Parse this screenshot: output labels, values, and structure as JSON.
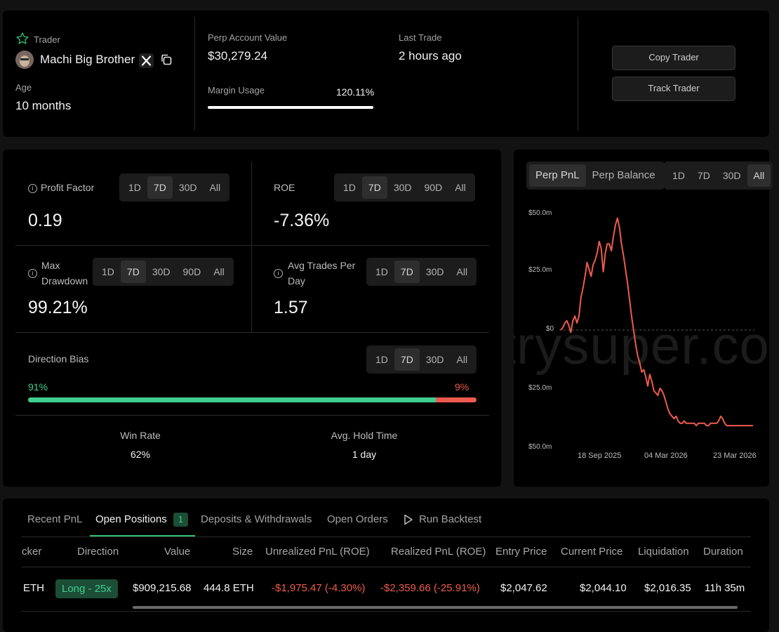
{
  "trader": {
    "label": "Trader",
    "name": "Machi Big Brother",
    "age_label": "Age",
    "age_value": "10 months"
  },
  "account": {
    "perp_label": "Perp Account Value",
    "perp_value": "$30,279.24",
    "last_trade_label": "Last Trade",
    "last_trade_value": "2 hours ago",
    "margin_label": "Margin Usage",
    "margin_value": "120.11%",
    "margin_fill": 1.0
  },
  "actions": {
    "copy": "Copy Trader",
    "track": "Track Trader"
  },
  "stats": {
    "profit_factor": {
      "label": "Profit Factor",
      "value": "0.19",
      "ranges": [
        "1D",
        "7D",
        "30D",
        "All"
      ],
      "active": "7D"
    },
    "roe": {
      "label": "ROE",
      "value": "-7.36%",
      "ranges": [
        "1D",
        "7D",
        "30D",
        "90D",
        "All"
      ],
      "active": "7D"
    },
    "max_drawdown": {
      "label_line1": "Max",
      "label_line2": "Drawdown",
      "value": "99.21%",
      "ranges": [
        "1D",
        "7D",
        "30D",
        "90D",
        "All"
      ],
      "active": "7D"
    },
    "avg_trades": {
      "label_line1": "Avg Trades Per",
      "label_line2": "Day",
      "value": "1.57",
      "ranges": [
        "1D",
        "7D",
        "30D",
        "All"
      ],
      "active": "7D"
    },
    "direction_bias": {
      "label": "Direction Bias",
      "long_pct": "91%",
      "short_pct": "9%",
      "long_fraction": 0.91,
      "ranges": [
        "1D",
        "7D",
        "30D",
        "All"
      ],
      "active": "7D"
    },
    "win_rate": {
      "label": "Win Rate",
      "value": "62%"
    },
    "avg_hold": {
      "label": "Avg. Hold Time",
      "value": "1 day"
    }
  },
  "chart_panel": {
    "mode_tabs": [
      "Perp PnL",
      "Perp Balance"
    ],
    "active_mode": "Perp PnL",
    "ranges": [
      "1D",
      "7D",
      "30D",
      "All"
    ],
    "active_range": "All",
    "watermark": "trysuper.co"
  },
  "chart_data": {
    "type": "line",
    "title": "",
    "ylabel": "",
    "xlabel": "",
    "y_tick_labels": [
      "$50.0m",
      "$25.0m",
      "$0",
      "$25.0m",
      "$50.0m"
    ],
    "x_tick_labels": [
      "18 Sep 2025",
      "04 Mar 2026",
      "23 Mar 2026"
    ],
    "ylim": [
      -50,
      50
    ],
    "zero_line": true,
    "series": [
      {
        "color": "#ef5a4f",
        "values": [
          0,
          1,
          3,
          4,
          2,
          -1,
          4,
          6,
          3,
          6,
          14,
          18,
          23,
          29,
          26,
          23,
          28,
          30,
          33,
          38,
          35,
          25,
          33,
          37,
          37,
          34,
          40,
          45,
          48,
          44,
          37,
          32,
          26,
          20,
          13,
          6,
          0,
          -6,
          -11,
          -14,
          -18,
          -17,
          -20,
          -24,
          -19,
          -22,
          -26,
          -27,
          -28,
          -25,
          -26,
          -28,
          -31,
          -34,
          -36,
          -37,
          -38,
          -37,
          -39,
          -40,
          -40,
          -39,
          -40,
          -40,
          -40,
          -40,
          -40,
          -41,
          -40,
          -40,
          -40,
          -40,
          -41,
          -41,
          -40,
          -40,
          -40,
          -40,
          -39,
          -37,
          -38,
          -40,
          -41,
          -41,
          -41,
          -41,
          -41,
          -41,
          -41,
          -41,
          -41,
          -41,
          -41,
          -41,
          -41,
          -41
        ]
      }
    ]
  },
  "positions": {
    "tabs": [
      "Recent PnL",
      "Open Positions",
      "Deposits & Withdrawals",
      "Open Orders",
      "Run Backtest"
    ],
    "active_tab": "Open Positions",
    "open_count": "1",
    "columns": [
      "cker",
      "Direction",
      "Value",
      "Size",
      "Unrealized PnL (ROE)",
      "Realized PnL (ROE)",
      "Entry Price",
      "Current Price",
      "Liquidation",
      "Duration"
    ],
    "rows": [
      {
        "ticker": "ETH",
        "direction": "Long - 25x",
        "value": "$909,215.68",
        "size": "444.8 ETH",
        "unrealized": "-$1,975.47 (-4.30%)",
        "realized": "-$2,359.66 (-25.91%)",
        "entry": "$2,047.62",
        "current": "$2,044.10",
        "liquidation": "$2,016.35",
        "duration": "11h 35m"
      }
    ]
  }
}
